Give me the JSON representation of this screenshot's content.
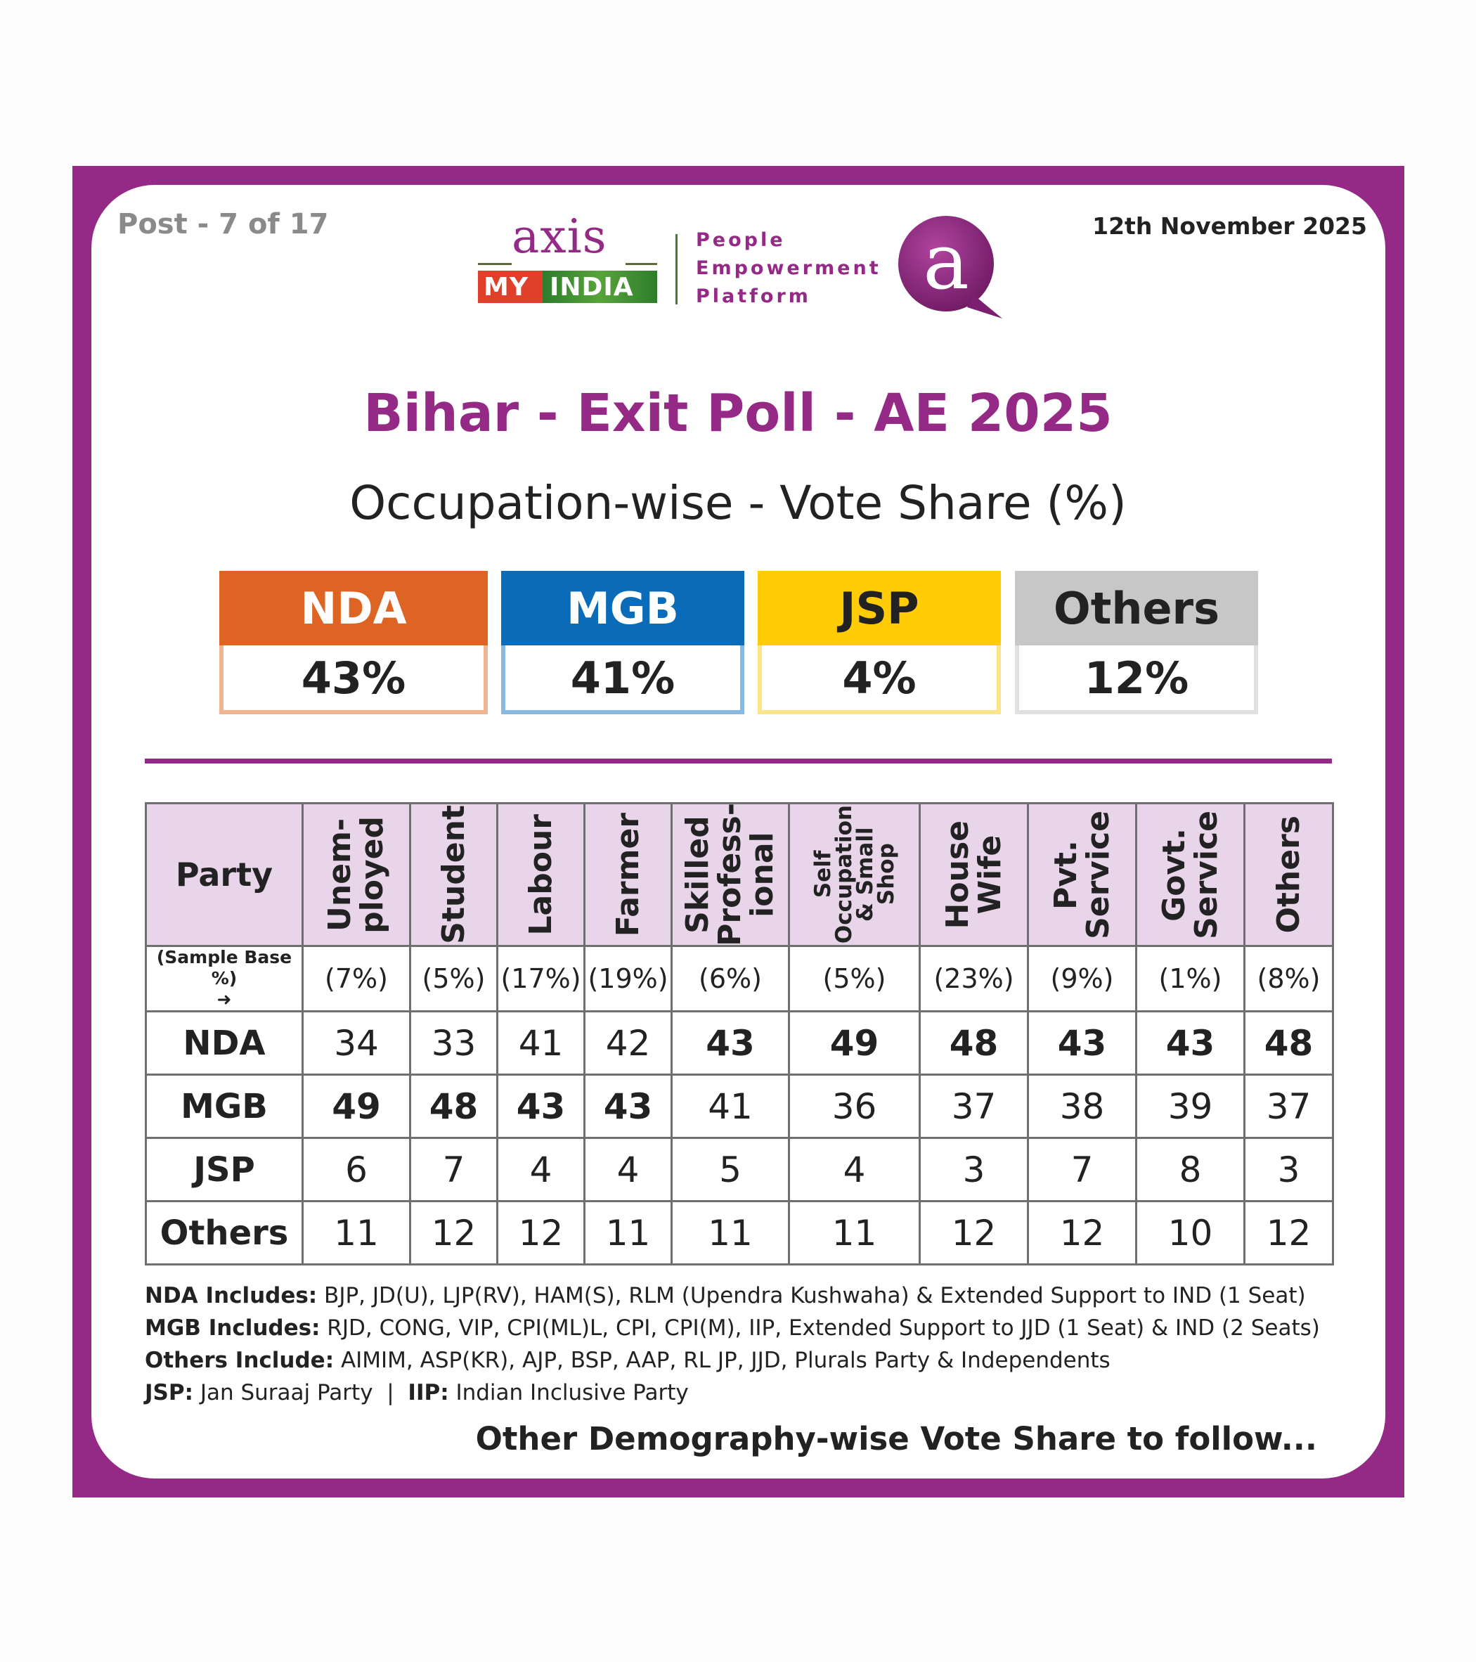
{
  "header": {
    "post": "Post - 7 of 17",
    "date": "12th November 2025",
    "logo": {
      "axis": "axis",
      "my": "MY",
      "india": "INDIA",
      "tagline": [
        "People",
        "Empowerment",
        "Platform"
      ],
      "badge": "a"
    }
  },
  "title": "Bihar - Exit Poll - AE 2025",
  "subtitle": "Occupation-wise - Vote Share (%)",
  "overall": [
    {
      "party": "NDA",
      "value": "43%",
      "color": "#dd6423",
      "border": "#eeb58f",
      "text": "#ffffff"
    },
    {
      "party": "MGB",
      "value": "41%",
      "color": "#0a6cb8",
      "border": "#8ab9df",
      "text": "#ffffff"
    },
    {
      "party": "JSP",
      "value": "4%",
      "color": "#ffcc05",
      "border": "#fbe48a",
      "text": "#222222"
    },
    {
      "party": "Others",
      "value": "12%",
      "color": "#c6c7c6",
      "border": "#e0e0e0",
      "text": "#222222"
    }
  ],
  "chart_data": {
    "type": "table",
    "title": "Occupation-wise - Vote Share (%)",
    "corner_label": "Party",
    "sample_base_label": "(Sample Base %)",
    "categories": [
      "Unem-\nployed",
      "Student",
      "Labour",
      "Farmer",
      "Skilled\nProfess-\nional",
      "Self\nOccupation\n& Small\nShop",
      "House\nWife",
      "Pvt.\nService",
      "Govt.\nService",
      "Others"
    ],
    "sample_base": [
      "(7%)",
      "(5%)",
      "(17%)",
      "(19%)",
      "(6%)",
      "(5%)",
      "(23%)",
      "(9%)",
      "(1%)",
      "(8%)"
    ],
    "series": [
      {
        "name": "NDA",
        "values": [
          34,
          33,
          41,
          42,
          43,
          49,
          48,
          43,
          43,
          48
        ],
        "bold": [
          false,
          false,
          false,
          false,
          true,
          true,
          true,
          true,
          true,
          true
        ]
      },
      {
        "name": "MGB",
        "values": [
          49,
          48,
          43,
          43,
          41,
          36,
          37,
          38,
          39,
          37
        ],
        "bold": [
          true,
          true,
          true,
          true,
          false,
          false,
          false,
          false,
          false,
          false
        ]
      },
      {
        "name": "JSP",
        "values": [
          6,
          7,
          4,
          4,
          5,
          4,
          3,
          7,
          8,
          3
        ],
        "bold": [
          false,
          false,
          false,
          false,
          false,
          false,
          false,
          false,
          false,
          false
        ]
      },
      {
        "name": "Others",
        "values": [
          11,
          12,
          12,
          11,
          11,
          11,
          12,
          12,
          10,
          12
        ],
        "bold": [
          false,
          false,
          false,
          false,
          false,
          false,
          false,
          false,
          false,
          false
        ]
      }
    ]
  },
  "notes": [
    {
      "label": "NDA Includes:",
      "text": " BJP, JD(U), LJP(RV), HAM(S), RLM (Upendra Kushwaha) & Extended Support to IND (1 Seat)"
    },
    {
      "label": "MGB Includes:",
      "text": " RJD, CONG, VIP, CPI(ML)L, CPI, CPI(M), IIP, Extended Support to JJD (1 Seat) & IND (2 Seats)"
    },
    {
      "label": "Others Include:",
      "text": " AIMIM, ASP(KR), AJP, BSP, AAP, RL JP, JJD, Plurals Party & Independents"
    }
  ],
  "note_last": {
    "label1": "JSP:",
    "text1": " Jan Suraaj Party  |  ",
    "label2": "IIP:",
    "text2": " Indian Inclusive Party"
  },
  "footer": "Other Demography-wise Vote Share to follow..."
}
